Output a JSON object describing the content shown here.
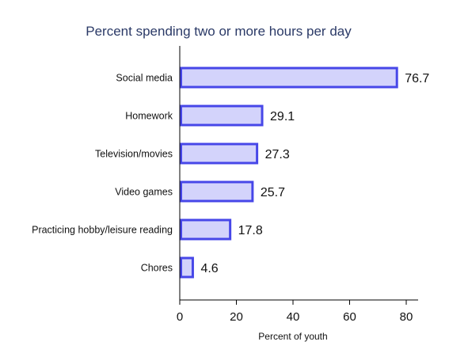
{
  "chart_data": {
    "type": "bar",
    "orientation": "horizontal",
    "title": "Percent spending two or more hours per day",
    "xlabel": "Percent of youth",
    "ylabel": "",
    "categories": [
      "Social media",
      "Homework",
      "Television/movies",
      "Video games",
      "Practicing hobby/leisure reading",
      "Chores"
    ],
    "values": [
      76.7,
      29.1,
      27.3,
      25.7,
      17.8,
      4.6
    ],
    "value_labels": [
      "76.7",
      "29.1",
      "27.3",
      "25.7",
      "17.8",
      "4.6"
    ],
    "xlim": [
      0,
      84
    ],
    "xticks": [
      0,
      20,
      40,
      60,
      80
    ],
    "xtick_labels": [
      "0",
      "20",
      "40",
      "60",
      "80"
    ],
    "grid": false,
    "legend": "none",
    "colors": {
      "bar_fill": "#d3d3fb",
      "bar_stroke": "#4747e8",
      "title": "#2b3a67",
      "axis": "#000000"
    }
  }
}
